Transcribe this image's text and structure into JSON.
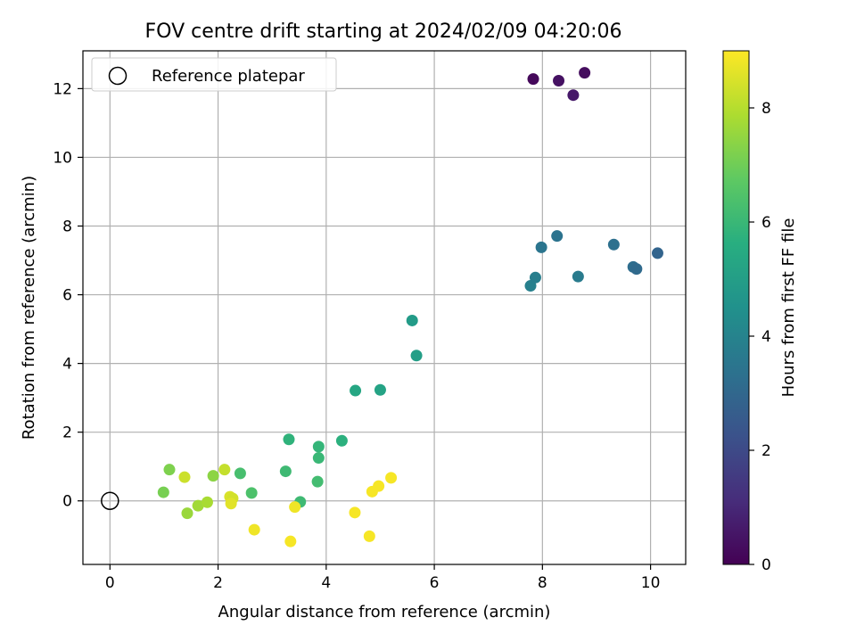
{
  "chart_data": {
    "type": "scatter",
    "title": "FOV centre drift starting at 2024/02/09 04:20:06",
    "xlabel": "Angular distance from reference (arcmin)",
    "ylabel": "Rotation from reference (arcmin)",
    "xlim": [
      -0.5,
      10.65
    ],
    "ylim": [
      -1.85,
      13.1
    ],
    "xticks": [
      0,
      2,
      4,
      6,
      8,
      10
    ],
    "yticks": [
      0,
      2,
      4,
      6,
      8,
      10,
      12
    ],
    "grid": true,
    "legend": {
      "placement": "top-left",
      "entries": [
        "Reference platepar"
      ]
    },
    "reference_point": {
      "x": 0,
      "y": 0,
      "marker": "open-circle"
    },
    "colormap": "viridis",
    "colorbar": {
      "label": "Hours from first FF file",
      "range": [
        0,
        9
      ],
      "ticks": [
        0,
        2,
        4,
        6,
        8
      ]
    },
    "points": [
      {
        "x": 7.83,
        "y": 12.28,
        "c": 0.2
      },
      {
        "x": 8.3,
        "y": 12.23,
        "c": 0.4
      },
      {
        "x": 8.57,
        "y": 11.81,
        "c": 0.6
      },
      {
        "x": 8.78,
        "y": 12.46,
        "c": 0.3
      },
      {
        "x": 7.78,
        "y": 6.26,
        "c": 3.9
      },
      {
        "x": 7.87,
        "y": 6.5,
        "c": 3.8
      },
      {
        "x": 7.98,
        "y": 7.38,
        "c": 3.5
      },
      {
        "x": 8.27,
        "y": 7.71,
        "c": 3.4
      },
      {
        "x": 8.66,
        "y": 6.53,
        "c": 3.7
      },
      {
        "x": 9.32,
        "y": 7.46,
        "c": 3.3
      },
      {
        "x": 9.68,
        "y": 6.81,
        "c": 3.2
      },
      {
        "x": 9.74,
        "y": 6.75,
        "c": 3.1
      },
      {
        "x": 10.13,
        "y": 7.21,
        "c": 2.9
      },
      {
        "x": 5.59,
        "y": 5.25,
        "c": 4.9
      },
      {
        "x": 5.67,
        "y": 4.23,
        "c": 5.0
      },
      {
        "x": 4.54,
        "y": 3.21,
        "c": 5.3
      },
      {
        "x": 5.0,
        "y": 3.23,
        "c": 5.2
      },
      {
        "x": 3.31,
        "y": 1.79,
        "c": 5.8
      },
      {
        "x": 3.86,
        "y": 1.58,
        "c": 5.9
      },
      {
        "x": 3.86,
        "y": 1.25,
        "c": 6.0
      },
      {
        "x": 4.29,
        "y": 1.75,
        "c": 5.7
      },
      {
        "x": 3.25,
        "y": 0.86,
        "c": 6.1
      },
      {
        "x": 3.84,
        "y": 0.56,
        "c": 6.2
      },
      {
        "x": 3.52,
        "y": -0.03,
        "c": 6.1
      },
      {
        "x": 2.41,
        "y": 0.8,
        "c": 6.3
      },
      {
        "x": 2.62,
        "y": 0.23,
        "c": 6.4
      },
      {
        "x": 0.99,
        "y": 0.25,
        "c": 7.1
      },
      {
        "x": 1.1,
        "y": 0.91,
        "c": 7.2
      },
      {
        "x": 1.91,
        "y": 0.73,
        "c": 7.4
      },
      {
        "x": 1.43,
        "y": -0.36,
        "c": 7.6
      },
      {
        "x": 1.63,
        "y": -0.14,
        "c": 7.7
      },
      {
        "x": 1.8,
        "y": -0.04,
        "c": 7.8
      },
      {
        "x": 1.38,
        "y": 0.69,
        "c": 8.3
      },
      {
        "x": 2.12,
        "y": 0.91,
        "c": 8.2
      },
      {
        "x": 2.22,
        "y": 0.12,
        "c": 8.5
      },
      {
        "x": 2.27,
        "y": 0.07,
        "c": 8.4
      },
      {
        "x": 2.24,
        "y": -0.08,
        "c": 8.6
      },
      {
        "x": 2.67,
        "y": -0.84,
        "c": 8.8
      },
      {
        "x": 3.34,
        "y": -1.18,
        "c": 8.9
      },
      {
        "x": 3.42,
        "y": -0.18,
        "c": 8.8
      },
      {
        "x": 4.53,
        "y": -0.34,
        "c": 8.9
      },
      {
        "x": 4.8,
        "y": -1.03,
        "c": 8.9
      },
      {
        "x": 4.85,
        "y": 0.27,
        "c": 8.9
      },
      {
        "x": 4.97,
        "y": 0.43,
        "c": 8.9
      },
      {
        "x": 5.2,
        "y": 0.67,
        "c": 8.9
      }
    ]
  }
}
